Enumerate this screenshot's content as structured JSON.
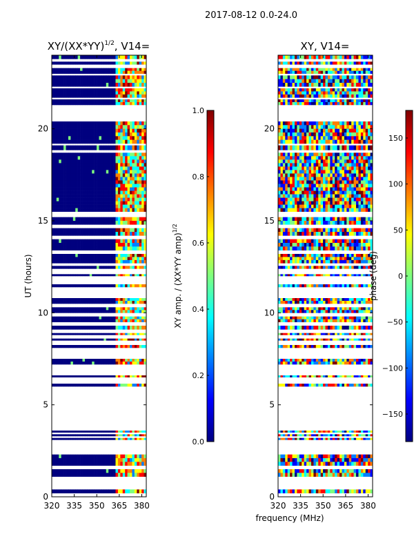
{
  "figure": {
    "suptitle": "2017-08-12 0.0-24.0",
    "xlabel": "frequency (MHz)"
  },
  "colors": {
    "jet": [
      "#00007f",
      "#0000ff",
      "#007fff",
      "#00ffff",
      "#7fff7f",
      "#ffff00",
      "#ff7f00",
      "#ff0000",
      "#7f0000"
    ]
  },
  "chart_data": [
    {
      "type": "heatmap",
      "title": "XY/(XX*YY)",
      "title_exponent": "1/2",
      "title_suffix": ", V14=",
      "ylabel": "UT (hours)",
      "xlim": [
        320,
        383
      ],
      "ylim": [
        0,
        24
      ],
      "xticks": [
        "320",
        "335",
        "350",
        "365",
        "380"
      ],
      "xtick_values": [
        320,
        335,
        350,
        365,
        380
      ],
      "yticks": [
        "0",
        "5",
        "10",
        "15",
        "20"
      ],
      "ytick_values": [
        0,
        5,
        10,
        15,
        20
      ],
      "colorbar": {
        "label": "XY amp. / (XX*YY amp)",
        "label_exponent": "1/2",
        "range": [
          0.0,
          1.0
        ],
        "ticks": [
          "0.0",
          "0.2",
          "0.4",
          "0.6",
          "0.8",
          "1.0"
        ],
        "tick_values": [
          0.0,
          0.2,
          0.4,
          0.6,
          0.8,
          1.0
        ]
      },
      "notes": "Mostly low amplitude (~0) below 362 MHz; 362-383 MHz band shows higher normalized amplitude (0.3-1.0). Data gaps are white.",
      "data_ut_ranges": [
        [
          0.2,
          0.4
        ],
        [
          1.1,
          1.5
        ],
        [
          1.7,
          2.3
        ],
        [
          3.1,
          3.2
        ],
        [
          3.3,
          3.4
        ],
        [
          3.5,
          3.6
        ],
        [
          6.0,
          6.15
        ],
        [
          6.5,
          6.6
        ],
        [
          7.2,
          7.5
        ],
        [
          8.1,
          8.25
        ],
        [
          8.5,
          8.6
        ],
        [
          8.8,
          8.9
        ],
        [
          9.1,
          9.3
        ],
        [
          9.5,
          9.8
        ],
        [
          10.0,
          10.3
        ],
        [
          10.5,
          10.8
        ],
        [
          11.4,
          11.55
        ],
        [
          12.0,
          12.1
        ],
        [
          12.4,
          12.55
        ],
        [
          12.7,
          13.2
        ],
        [
          13.4,
          14.0
        ],
        [
          14.2,
          14.6
        ],
        [
          14.8,
          15.2
        ],
        [
          15.5,
          18.7
        ],
        [
          18.85,
          19.1
        ],
        [
          19.2,
          20.4
        ],
        [
          21.3,
          21.6
        ],
        [
          21.7,
          22.2
        ],
        [
          22.3,
          22.9
        ],
        [
          23.0,
          23.3
        ],
        [
          23.5,
          23.65
        ],
        [
          23.8,
          24.0
        ]
      ]
    },
    {
      "type": "heatmap",
      "title": "XY, V14=",
      "ylabel": "",
      "xlim": [
        320,
        383
      ],
      "ylim": [
        0,
        24
      ],
      "xticks": [
        "320",
        "335",
        "350",
        "365",
        "380"
      ],
      "xtick_values": [
        320,
        335,
        350,
        365,
        380
      ],
      "yticks": [
        "0",
        "5",
        "10",
        "15",
        "20"
      ],
      "ytick_values": [
        0,
        5,
        10,
        15,
        20
      ],
      "colorbar": {
        "label": "phase (deg)",
        "range": [
          -180,
          180
        ],
        "ticks": [
          "−150",
          "−100",
          "−50",
          "0",
          "50",
          "100",
          "150"
        ],
        "tick_values": [
          -150,
          -100,
          -50,
          0,
          50,
          100,
          150
        ]
      },
      "notes": "Phase spans full -180..180 range with rapid variation across time and frequency. Data gaps are white.",
      "data_ut_ranges": [
        [
          0.2,
          0.4
        ],
        [
          1.1,
          1.5
        ],
        [
          1.7,
          2.3
        ],
        [
          3.1,
          3.2
        ],
        [
          3.3,
          3.4
        ],
        [
          3.5,
          3.6
        ],
        [
          6.0,
          6.15
        ],
        [
          6.5,
          6.6
        ],
        [
          7.2,
          7.5
        ],
        [
          8.1,
          8.25
        ],
        [
          8.5,
          8.6
        ],
        [
          8.8,
          8.9
        ],
        [
          9.1,
          9.3
        ],
        [
          9.5,
          9.8
        ],
        [
          10.0,
          10.3
        ],
        [
          10.5,
          10.8
        ],
        [
          11.4,
          11.55
        ],
        [
          12.0,
          12.1
        ],
        [
          12.4,
          12.55
        ],
        [
          12.7,
          13.2
        ],
        [
          13.4,
          14.0
        ],
        [
          14.2,
          14.6
        ],
        [
          14.8,
          15.2
        ],
        [
          15.5,
          18.7
        ],
        [
          18.85,
          19.1
        ],
        [
          19.2,
          20.4
        ],
        [
          21.3,
          21.6
        ],
        [
          21.7,
          22.2
        ],
        [
          22.3,
          22.9
        ],
        [
          23.0,
          23.3
        ],
        [
          23.5,
          23.65
        ],
        [
          23.8,
          24.0
        ]
      ]
    }
  ]
}
